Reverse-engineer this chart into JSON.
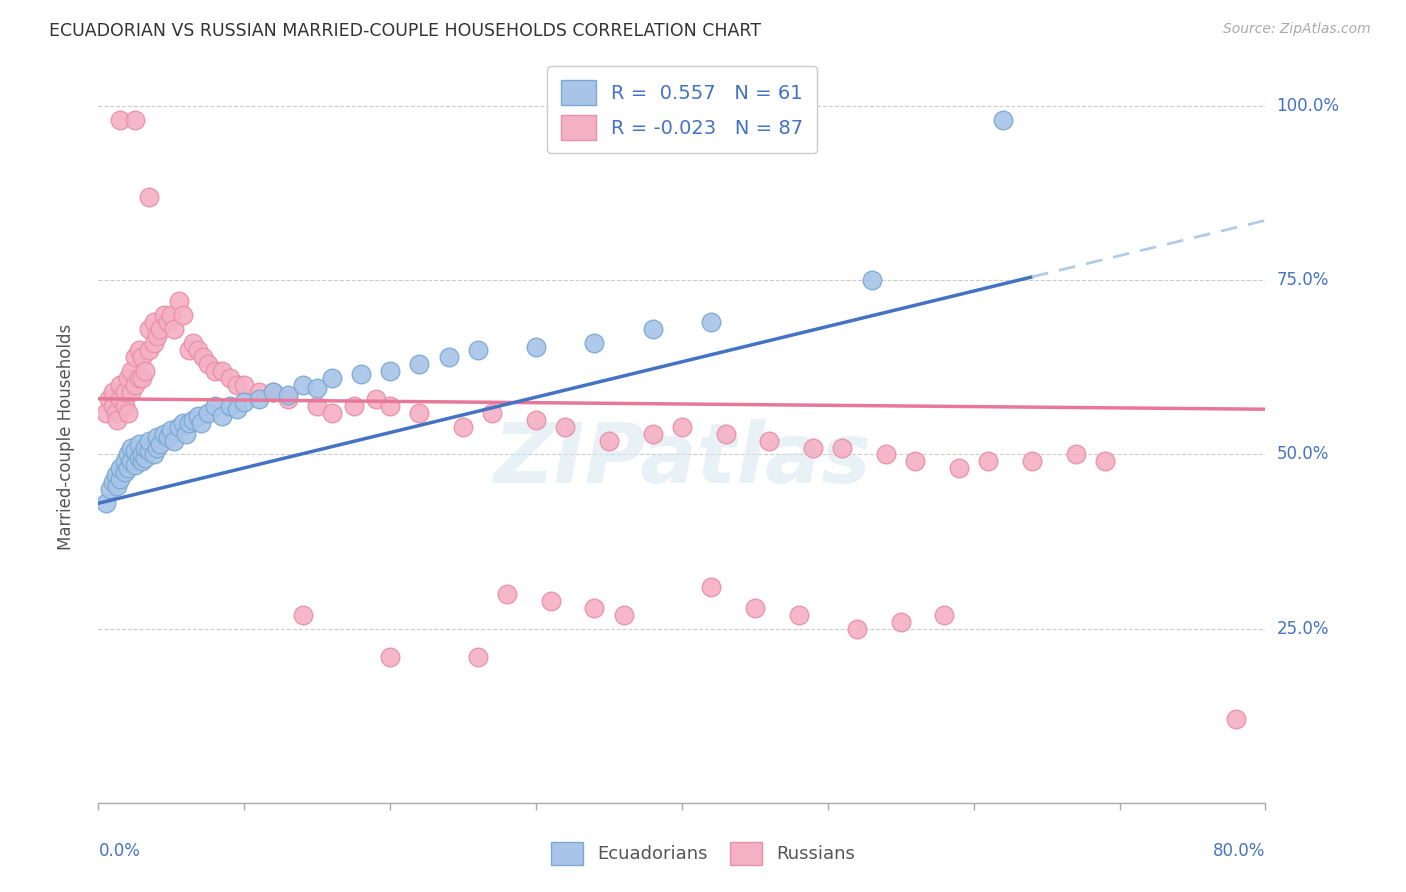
{
  "title": "ECUADORIAN VS RUSSIAN MARRIED-COUPLE HOUSEHOLDS CORRELATION CHART",
  "source": "Source: ZipAtlas.com",
  "ylabel": "Married-couple Households",
  "xlim": [
    0.0,
    0.8
  ],
  "ylim": [
    0.0,
    1.05
  ],
  "legend_r_ecuador": "0.557",
  "legend_n_ecuador": "61",
  "legend_r_russian": "-0.023",
  "legend_n_russian": "87",
  "ecuador_color": "#a8c4e8",
  "ecuador_edge": "#7aaad0",
  "russian_color": "#f4b0c4",
  "russian_edge": "#e890a8",
  "ecuador_line_color": "#4472c4",
  "russian_line_color": "#e8789a",
  "trend_ext_color": "#b0cce8",
  "background_color": "#ffffff",
  "watermark": "ZIPatlas",
  "ecu_x": [
    0.005,
    0.008,
    0.01,
    0.012,
    0.013,
    0.015,
    0.015,
    0.018,
    0.018,
    0.02,
    0.02,
    0.022,
    0.022,
    0.025,
    0.025,
    0.028,
    0.028,
    0.03,
    0.03,
    0.032,
    0.032,
    0.035,
    0.035,
    0.038,
    0.04,
    0.04,
    0.042,
    0.045,
    0.048,
    0.05,
    0.052,
    0.055,
    0.058,
    0.06,
    0.062,
    0.065,
    0.068,
    0.07,
    0.075,
    0.08,
    0.085,
    0.09,
    0.095,
    0.1,
    0.11,
    0.12,
    0.13,
    0.14,
    0.15,
    0.16,
    0.18,
    0.2,
    0.22,
    0.24,
    0.26,
    0.3,
    0.34,
    0.38,
    0.42,
    0.53,
    0.62
  ],
  "ecu_y": [
    0.43,
    0.45,
    0.46,
    0.47,
    0.455,
    0.465,
    0.48,
    0.475,
    0.49,
    0.48,
    0.5,
    0.49,
    0.51,
    0.485,
    0.505,
    0.495,
    0.515,
    0.49,
    0.5,
    0.495,
    0.51,
    0.505,
    0.52,
    0.5,
    0.51,
    0.525,
    0.515,
    0.53,
    0.525,
    0.535,
    0.52,
    0.54,
    0.545,
    0.53,
    0.545,
    0.55,
    0.555,
    0.545,
    0.56,
    0.57,
    0.555,
    0.57,
    0.565,
    0.575,
    0.58,
    0.59,
    0.585,
    0.6,
    0.595,
    0.61,
    0.615,
    0.62,
    0.63,
    0.64,
    0.65,
    0.655,
    0.66,
    0.68,
    0.69,
    0.75,
    0.98
  ],
  "rus_x": [
    0.005,
    0.007,
    0.01,
    0.01,
    0.012,
    0.013,
    0.015,
    0.015,
    0.018,
    0.018,
    0.02,
    0.02,
    0.022,
    0.022,
    0.025,
    0.025,
    0.028,
    0.028,
    0.03,
    0.03,
    0.032,
    0.035,
    0.035,
    0.038,
    0.038,
    0.04,
    0.042,
    0.045,
    0.048,
    0.05,
    0.052,
    0.055,
    0.058,
    0.062,
    0.065,
    0.068,
    0.072,
    0.075,
    0.08,
    0.085,
    0.09,
    0.095,
    0.1,
    0.11,
    0.12,
    0.13,
    0.15,
    0.16,
    0.175,
    0.19,
    0.2,
    0.22,
    0.25,
    0.27,
    0.3,
    0.32,
    0.35,
    0.38,
    0.4,
    0.43,
    0.46,
    0.49,
    0.51,
    0.54,
    0.56,
    0.59,
    0.61,
    0.64,
    0.67,
    0.69,
    0.34,
    0.36,
    0.28,
    0.31,
    0.42,
    0.45,
    0.48,
    0.52,
    0.55,
    0.58,
    0.015,
    0.025,
    0.035,
    0.14,
    0.2,
    0.26,
    0.78
  ],
  "rus_y": [
    0.56,
    0.58,
    0.57,
    0.59,
    0.56,
    0.55,
    0.58,
    0.6,
    0.57,
    0.59,
    0.56,
    0.61,
    0.59,
    0.62,
    0.6,
    0.64,
    0.61,
    0.65,
    0.61,
    0.64,
    0.62,
    0.65,
    0.68,
    0.66,
    0.69,
    0.67,
    0.68,
    0.7,
    0.69,
    0.7,
    0.68,
    0.72,
    0.7,
    0.65,
    0.66,
    0.65,
    0.64,
    0.63,
    0.62,
    0.62,
    0.61,
    0.6,
    0.6,
    0.59,
    0.59,
    0.58,
    0.57,
    0.56,
    0.57,
    0.58,
    0.57,
    0.56,
    0.54,
    0.56,
    0.55,
    0.54,
    0.52,
    0.53,
    0.54,
    0.53,
    0.52,
    0.51,
    0.51,
    0.5,
    0.49,
    0.48,
    0.49,
    0.49,
    0.5,
    0.49,
    0.28,
    0.27,
    0.3,
    0.29,
    0.31,
    0.28,
    0.27,
    0.25,
    0.26,
    0.27,
    0.98,
    0.98,
    0.87,
    0.27,
    0.21,
    0.21,
    0.12
  ]
}
